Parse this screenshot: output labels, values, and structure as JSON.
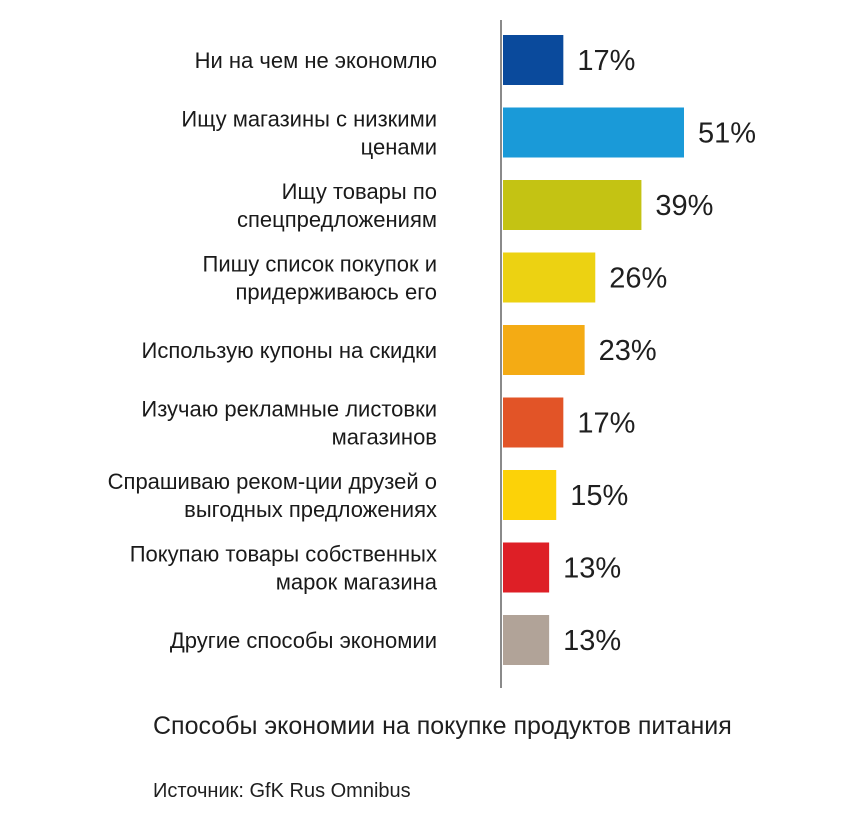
{
  "chart_data": {
    "type": "bar",
    "orientation": "horizontal",
    "categories": [
      [
        "Ни на чем не экономлю"
      ],
      [
        "Ищу магазины с низкими",
        "ценами"
      ],
      [
        "Ищу товары по",
        "спецпредложениям"
      ],
      [
        "Пишу список покупок и",
        "придерживаюсь его"
      ],
      [
        "Использую купоны на скидки"
      ],
      [
        "Изучаю рекламные листовки",
        "магазинов"
      ],
      [
        "Спрашиваю реком-ции друзей о",
        "выгодных предложениях"
      ],
      [
        "Покупаю товары собственных",
        "марок магазина"
      ],
      [
        "Другие способы экономии"
      ]
    ],
    "values": [
      17,
      51,
      39,
      26,
      23,
      17,
      15,
      13,
      13
    ],
    "value_labels": [
      "17%",
      "51%",
      "39%",
      "26%",
      "23%",
      "17%",
      "15%",
      "13%",
      "13%"
    ],
    "colors": [
      "#0a4a9c",
      "#1a9ad8",
      "#c4c313",
      "#ecd212",
      "#f4ab14",
      "#e25427",
      "#fcd208",
      "#de1f26",
      "#b1a398"
    ],
    "xlim": [
      0,
      51
    ],
    "grid": false,
    "legend": "none"
  },
  "caption": "Способы экономии на покупке продуктов питания",
  "source": "Источник: GfK Rus Omnibus"
}
